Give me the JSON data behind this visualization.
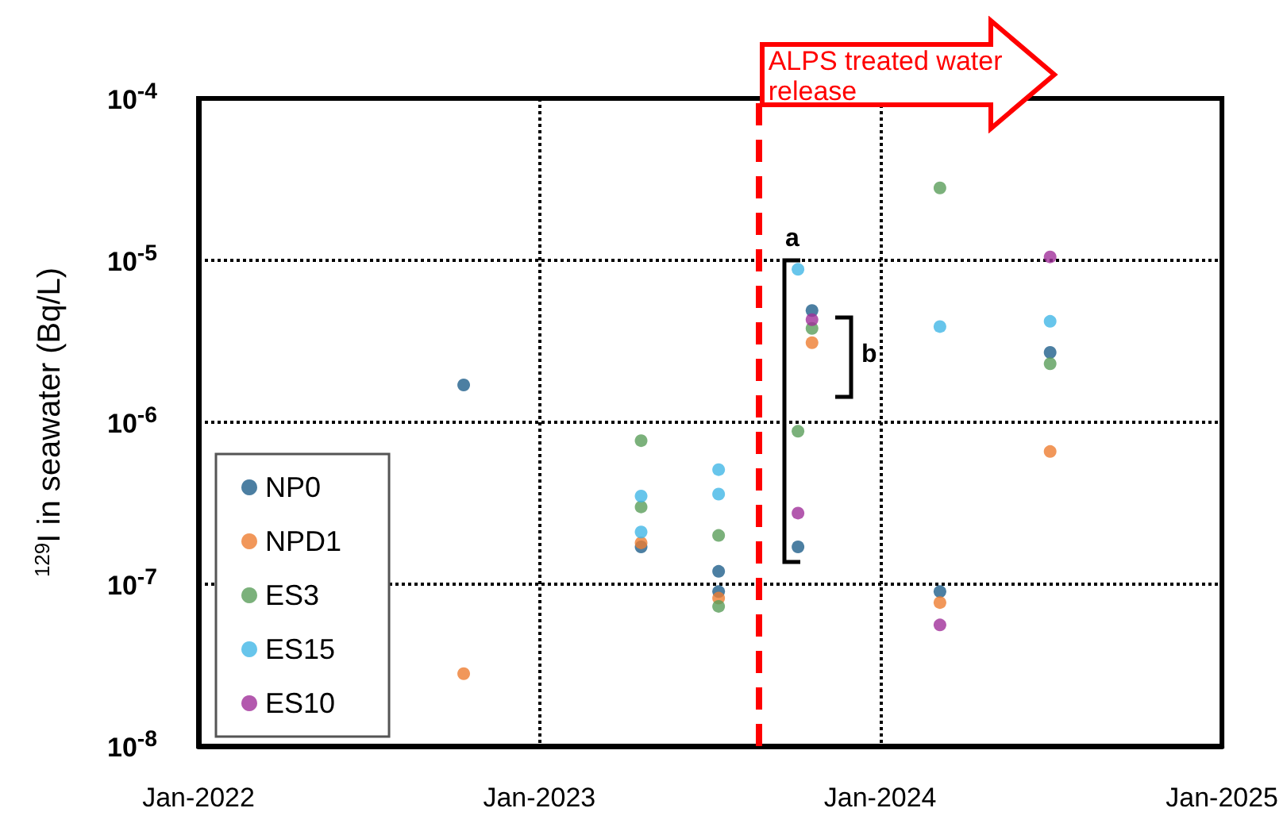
{
  "chart_data": {
    "type": "scatter",
    "ylabel": "$^{129}$I in seawater (Bq/L)",
    "log": "y",
    "grid": true,
    "legend": "bottom left",
    "marker": "circle",
    "xlim": [
      "2022-01",
      "2025-01"
    ],
    "xticks": [
      {
        "value": "2022-01",
        "label": "Jan-2022"
      },
      {
        "value": "2023-01",
        "label": "Jan-2023"
      },
      {
        "value": "2024-01",
        "label": "Jan-2024"
      },
      {
        "value": "2025-01",
        "label": "Jan-2025"
      }
    ],
    "ylim": [
      1e-08,
      0.0001
    ],
    "yticks": [
      {
        "value": 1e-08,
        "label": "10$^{-8}$"
      },
      {
        "value": 1e-07,
        "label": "10$^{-7}$"
      },
      {
        "value": 1e-06,
        "label": "10$^{-6}$"
      },
      {
        "value": 1e-05,
        "label": "10$^{-5}$"
      },
      {
        "value": 0.0001,
        "label": "10$^{-4}$"
      }
    ],
    "series": [
      {
        "name": "NP0",
        "color": "#1f5f8b",
        "x": [
          "2022-10-12",
          "2023-04-20",
          "2023-07-12",
          "2023-07-12",
          "2023-10-05",
          "2023-10-20",
          "2024-03-05",
          "2024-07-01"
        ],
        "values": [
          1.7e-06,
          1.7e-07,
          1.2e-07,
          9e-08,
          1.7e-07,
          4.9e-06,
          9e-08,
          2.7e-06
        ]
      },
      {
        "name": "NPD1",
        "color": "#ed7d31",
        "x": [
          "2022-10-12",
          "2023-04-20",
          "2023-07-12",
          "2023-10-20",
          "2024-03-05",
          "2024-07-01"
        ],
        "values": [
          2.8e-08,
          1.8e-07,
          8.2e-08,
          3.1e-06,
          7.7e-08,
          6.6e-07
        ]
      },
      {
        "name": "ES3",
        "color": "#5a9e5a",
        "x": [
          "2023-04-20",
          "2023-04-20",
          "2023-07-12",
          "2023-07-12",
          "2023-10-05",
          "2023-10-20",
          "2024-03-05",
          "2024-07-01"
        ],
        "values": [
          7.7e-07,
          3e-07,
          2e-07,
          7.3e-08,
          8.8e-07,
          3.8e-06,
          2.8e-05,
          2.3e-06
        ]
      },
      {
        "name": "ES15",
        "color": "#41b6e6",
        "x": [
          "2023-04-20",
          "2023-04-20",
          "2023-07-12",
          "2023-07-12",
          "2023-10-05",
          "2024-03-05",
          "2024-07-01"
        ],
        "values": [
          3.5e-07,
          2.1e-07,
          5.1e-07,
          3.6e-07,
          8.8e-06,
          3.9e-06,
          4.2e-06
        ]
      },
      {
        "name": "ES10",
        "color": "#a0309a",
        "x": [
          "2023-10-05",
          "2023-10-20",
          "2024-03-05",
          "2024-07-01"
        ],
        "values": [
          2.75e-07,
          4.3e-06,
          5.6e-08,
          1.05e-05
        ]
      }
    ],
    "ref_lines": [
      {
        "axis": "x",
        "value": "2023-08-24",
        "label": "ALPS treated water release",
        "color": "#ff0000",
        "line_style": "dashed"
      }
    ],
    "annotations": [
      {
        "text": "a",
        "x": "2023-09-28",
        "y": 1e-05
      },
      "b"
    ]
  }
}
